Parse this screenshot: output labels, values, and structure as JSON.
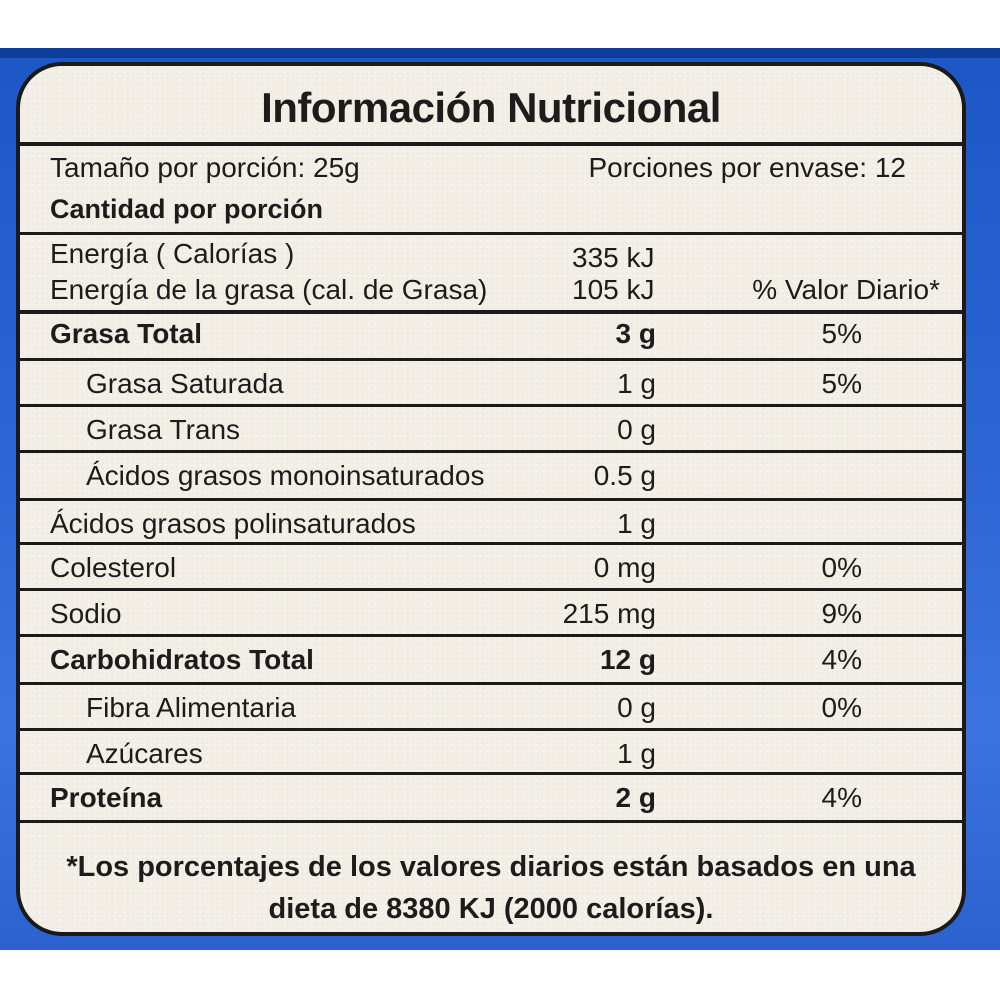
{
  "title": "Información Nutricional",
  "serving_size": "Tamaño por porción: 25g",
  "servings_per_container": "Porciones por envase: 12",
  "amount_per_serving": "Cantidad por porción",
  "energy": {
    "label": "Energía ( Calorías )",
    "value": "335 kJ"
  },
  "energy_fat": {
    "label": "Energía de la grasa (cal. de Grasa)",
    "value": "105 kJ"
  },
  "dv_header": "% Valor Diario*",
  "rows": [
    {
      "label": "Grasa Total",
      "amount": "3 g",
      "dv": "5%",
      "bold": true,
      "indent": false
    },
    {
      "label": "Grasa  Saturada",
      "amount": "1 g",
      "dv": "5%",
      "bold": false,
      "indent": true
    },
    {
      "label": "Grasa  Trans",
      "amount": "0 g",
      "dv": "",
      "bold": false,
      "indent": true
    },
    {
      "label": "Ácidos grasos monoinsaturados",
      "amount": "0.5 g",
      "dv": "",
      "bold": false,
      "indent": true
    },
    {
      "label": "Ácidos grasos polinsaturados",
      "amount": "1 g",
      "dv": "",
      "bold": false,
      "indent": false
    },
    {
      "label": "Colesterol",
      "amount": "0 mg",
      "dv": "0%",
      "bold": false,
      "indent": false
    },
    {
      "label": "Sodio",
      "amount": "215 mg",
      "dv": "9%",
      "bold": false,
      "indent": false
    },
    {
      "label": "Carbohidratos Total",
      "amount": "12 g",
      "dv": "4%",
      "bold": true,
      "indent": false
    },
    {
      "label": "Fibra Alimentaria",
      "amount": "0 g",
      "dv": "0%",
      "bold": false,
      "indent": true
    },
    {
      "label": "Azúcares",
      "amount": "1 g",
      "dv": "",
      "bold": false,
      "indent": true
    },
    {
      "label": "Proteína",
      "amount": "2 g",
      "dv": "4%",
      "bold": true,
      "indent": false
    }
  ],
  "footnote_line1": "*Los porcentajes de los valores diarios están basados en una",
  "footnote_line2": "dieta de 8380 KJ (2000 calorías).",
  "colors": {
    "packaging_blue": "#2a63d2",
    "label_cream": "#f3efe7",
    "ink": "#1c1c1c"
  }
}
